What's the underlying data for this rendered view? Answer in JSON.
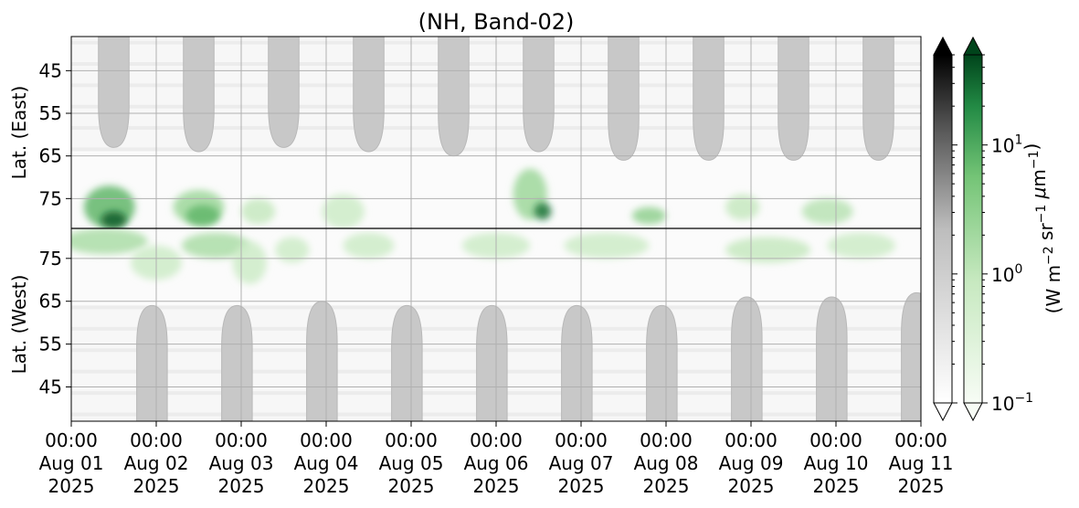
{
  "chart_data": {
    "type": "heatmap",
    "title": "(NH, Band-02)",
    "upper_panel": {
      "ylabel": "Lat. (East)",
      "yticks": [
        "45",
        "55",
        "65",
        "75"
      ],
      "ylim": [
        37,
        82
      ]
    },
    "lower_panel": {
      "ylabel": "Lat. (West)",
      "yticks": [
        "75",
        "65",
        "55",
        "45"
      ],
      "ylim": [
        82,
        37
      ]
    },
    "x_ticks": [
      {
        "time": "00:00",
        "date": "Aug 01",
        "year": "2025"
      },
      {
        "time": "00:00",
        "date": "Aug 02",
        "year": "2025"
      },
      {
        "time": "00:00",
        "date": "Aug 03",
        "year": "2025"
      },
      {
        "time": "00:00",
        "date": "Aug 04",
        "year": "2025"
      },
      {
        "time": "00:00",
        "date": "Aug 05",
        "year": "2025"
      },
      {
        "time": "00:00",
        "date": "Aug 06",
        "year": "2025"
      },
      {
        "time": "00:00",
        "date": "Aug 07",
        "year": "2025"
      },
      {
        "time": "00:00",
        "date": "Aug 08",
        "year": "2025"
      },
      {
        "time": "00:00",
        "date": "Aug 09",
        "year": "2025"
      },
      {
        "time": "00:00",
        "date": "Aug 10",
        "year": "2025"
      },
      {
        "time": "00:00",
        "date": "Aug 11",
        "year": "2025"
      }
    ],
    "grid": true,
    "gray_blocks": {
      "upper_day_centers": [
        0.5,
        1.5,
        2.5,
        3.5,
        4.5,
        5.5,
        6.5,
        7.5,
        8.5,
        9.5
      ],
      "upper_bottom_lat": [
        63,
        64,
        63,
        64,
        65,
        64,
        66,
        66,
        66,
        66
      ],
      "lower_day_centers": [
        0.95,
        1.95,
        2.95,
        3.95,
        4.95,
        5.95,
        6.95,
        7.95,
        8.95,
        9.95
      ],
      "lower_top_lat": [
        64,
        64,
        65,
        64,
        64,
        64,
        64,
        66,
        66,
        67
      ],
      "half_width_days": 0.18
    },
    "green_clusters": [
      {
        "panel": "upper",
        "x": 0.45,
        "lat": 77,
        "dx": 0.3,
        "dlat": 5,
        "level": 0.7
      },
      {
        "panel": "upper",
        "x": 0.5,
        "lat": 80,
        "dx": 0.15,
        "dlat": 2,
        "level": 0.95
      },
      {
        "panel": "upper",
        "x": 1.5,
        "lat": 77,
        "dx": 0.3,
        "dlat": 4,
        "level": 0.5
      },
      {
        "panel": "upper",
        "x": 1.55,
        "lat": 79,
        "dx": 0.2,
        "dlat": 2.5,
        "level": 0.7
      },
      {
        "panel": "upper",
        "x": 2.2,
        "lat": 78,
        "dx": 0.2,
        "dlat": 3,
        "level": 0.35
      },
      {
        "panel": "upper",
        "x": 3.2,
        "lat": 78,
        "dx": 0.25,
        "dlat": 4,
        "level": 0.3
      },
      {
        "panel": "upper",
        "x": 5.4,
        "lat": 74,
        "dx": 0.2,
        "dlat": 6,
        "level": 0.5
      },
      {
        "panel": "upper",
        "x": 5.55,
        "lat": 78,
        "dx": 0.1,
        "dlat": 2,
        "level": 0.9
      },
      {
        "panel": "upper",
        "x": 6.8,
        "lat": 79,
        "dx": 0.2,
        "dlat": 2,
        "level": 0.55
      },
      {
        "panel": "upper",
        "x": 7.9,
        "lat": 77,
        "dx": 0.2,
        "dlat": 3,
        "level": 0.35
      },
      {
        "panel": "upper",
        "x": 8.9,
        "lat": 78,
        "dx": 0.3,
        "dlat": 3,
        "level": 0.4
      },
      {
        "panel": "lower",
        "x": 0.4,
        "lat": 79,
        "dx": 0.5,
        "dlat": 3,
        "level": 0.45
      },
      {
        "panel": "lower",
        "x": 1.0,
        "lat": 74,
        "dx": 0.3,
        "dlat": 4,
        "level": 0.3
      },
      {
        "panel": "lower",
        "x": 1.7,
        "lat": 78,
        "dx": 0.4,
        "dlat": 3,
        "level": 0.45
      },
      {
        "panel": "lower",
        "x": 2.1,
        "lat": 74,
        "dx": 0.2,
        "dlat": 5,
        "level": 0.3
      },
      {
        "panel": "lower",
        "x": 2.6,
        "lat": 77,
        "dx": 0.2,
        "dlat": 3,
        "level": 0.3
      },
      {
        "panel": "lower",
        "x": 3.5,
        "lat": 78,
        "dx": 0.3,
        "dlat": 3,
        "level": 0.3
      },
      {
        "panel": "lower",
        "x": 5.0,
        "lat": 78,
        "dx": 0.4,
        "dlat": 3,
        "level": 0.3
      },
      {
        "panel": "lower",
        "x": 6.3,
        "lat": 78,
        "dx": 0.5,
        "dlat": 3,
        "level": 0.3
      },
      {
        "panel": "lower",
        "x": 8.2,
        "lat": 77,
        "dx": 0.5,
        "dlat": 3,
        "level": 0.35
      },
      {
        "panel": "lower",
        "x": 9.3,
        "lat": 78,
        "dx": 0.4,
        "dlat": 3,
        "level": 0.3
      }
    ],
    "colorbar": {
      "label": "(W m$^{-2}$ sr$^{-1}$ $\\mu$m$^{-1}$)",
      "scale": "log",
      "range": [
        0.1,
        50
      ],
      "ticks": [
        {
          "base": "10",
          "exp": "1",
          "value": 10
        },
        {
          "base": "10",
          "exp": "0",
          "value": 1
        },
        {
          "base": "10",
          "exp": "−1",
          "value": 0.1
        }
      ],
      "colormaps": [
        "Greys",
        "Greens"
      ],
      "extend": "both"
    }
  }
}
